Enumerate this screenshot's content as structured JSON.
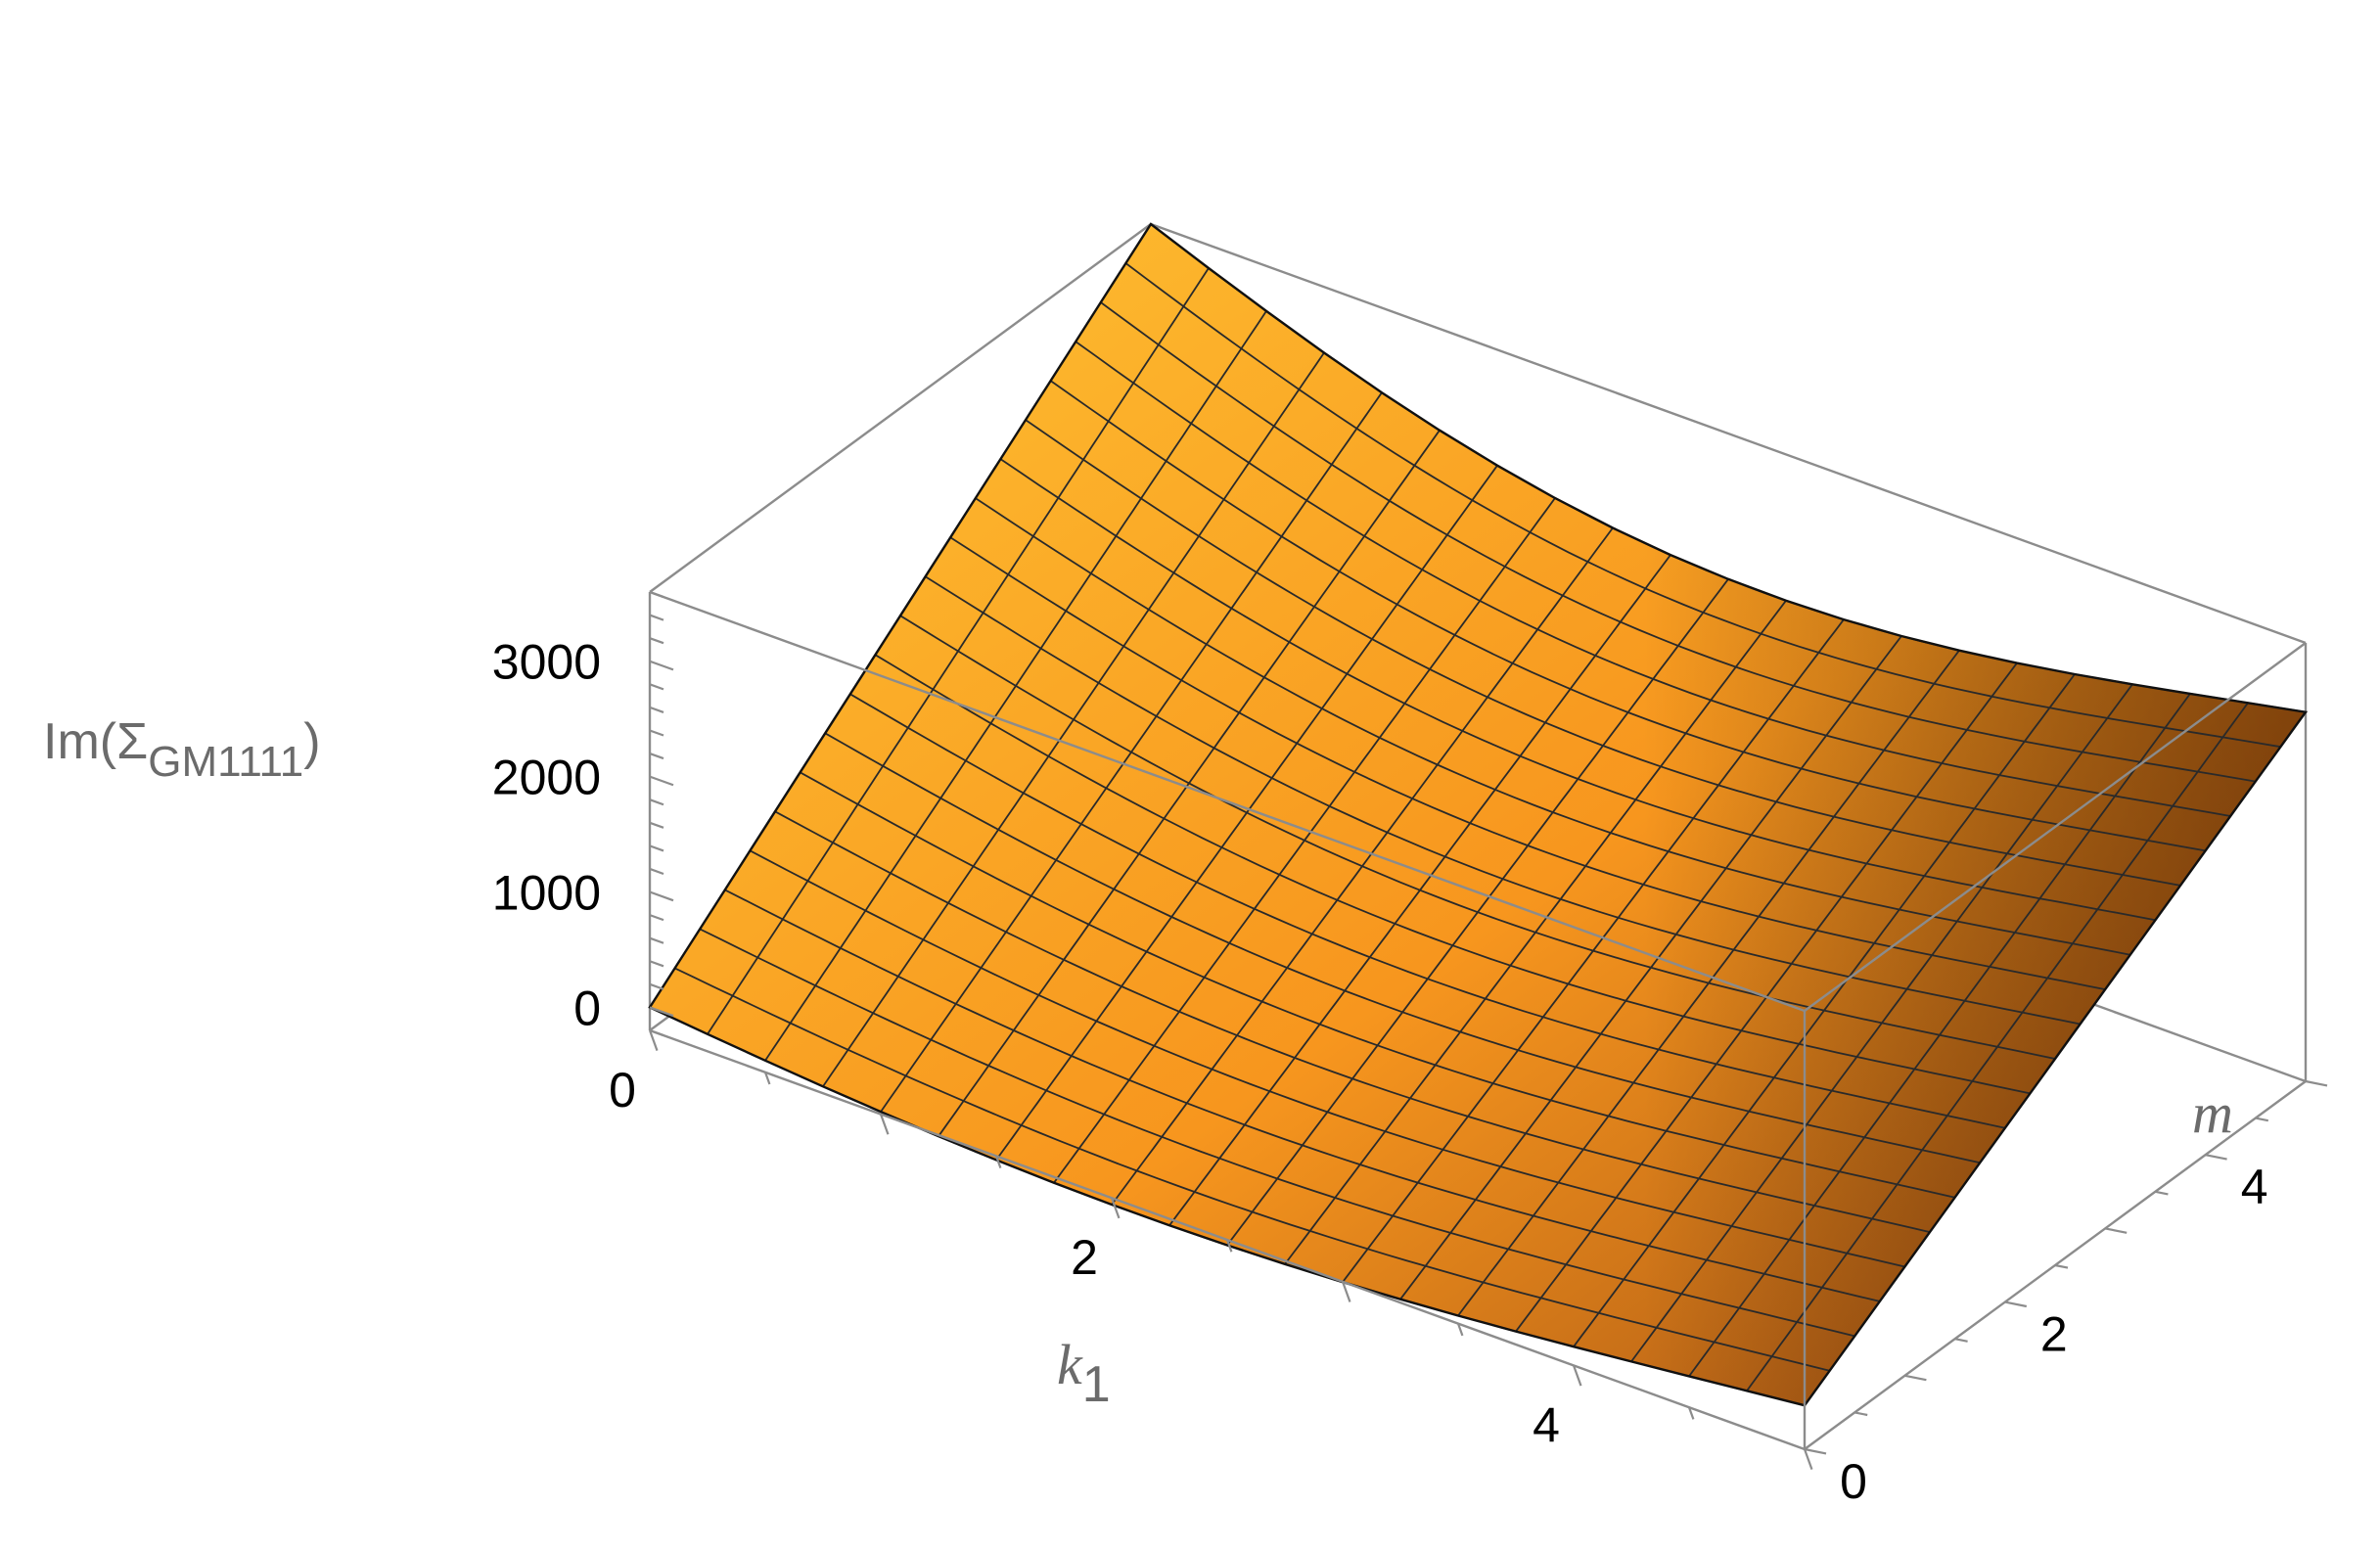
{
  "chart_data": {
    "type": "surface3d",
    "title": "",
    "xlabel": "k",
    "xlabel_subscript": "1",
    "ylabel": "m",
    "zlabel_prefix": "Im(Σ",
    "zlabel_subscript": "GM1111",
    "zlabel_suffix": ")",
    "xlim": [
      0,
      5
    ],
    "ylim": [
      0,
      5
    ],
    "zlim": [
      -200,
      3600
    ],
    "x_ticks": [
      0,
      2,
      4
    ],
    "x_tick_labels": [
      "0",
      "2",
      "4"
    ],
    "y_ticks": [
      0,
      2,
      4
    ],
    "y_tick_labels": [
      "0",
      "2",
      "4"
    ],
    "z_ticks": [
      0,
      1000,
      2000,
      3000
    ],
    "z_tick_labels": [
      "0",
      "1000",
      "2000",
      "3000"
    ],
    "corner_values": {
      "k1_0_m_0": 0,
      "k1_5_m_0": 180,
      "k1_0_m_5": 3600,
      "k1_5_m_5": 3000
    },
    "mesh_lines_per_axis": 21,
    "surface_color": "#f7a12a",
    "surface_highlight": "#ffc62e",
    "surface_shadow": "#7a3a0a",
    "grid": false,
    "legend": "none"
  }
}
